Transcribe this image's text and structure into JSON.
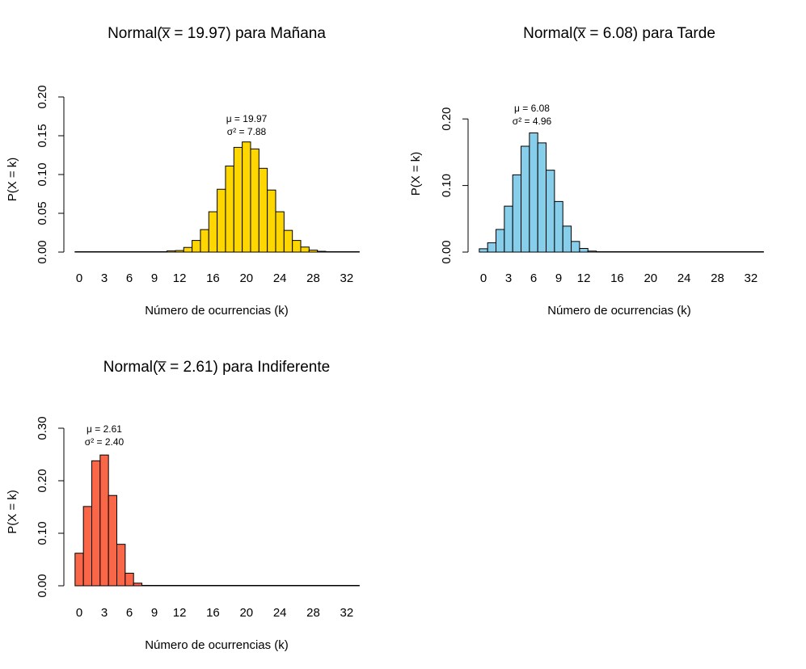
{
  "chart_data": [
    {
      "type": "bar",
      "title": "Normal(x̅ = 19.97) para Mañana",
      "xlabel": "Número de ocurrencias (k)",
      "ylabel": "P(X = k)",
      "color": "#FFD700",
      "x_ticks": [
        "0",
        "3",
        "6",
        "9",
        "12",
        "16",
        "20",
        "24",
        "28",
        "32"
      ],
      "y_ticks": [
        "0.00",
        "0.05",
        "0.10",
        "0.15",
        "0.20"
      ],
      "ylim": [
        0,
        0.2
      ],
      "annotation": [
        "μ = 19.97",
        "σ² = 7.88"
      ],
      "categories": [
        0,
        1,
        2,
        3,
        4,
        5,
        6,
        7,
        8,
        9,
        10,
        11,
        12,
        13,
        14,
        15,
        16,
        17,
        18,
        19,
        20,
        21,
        22,
        23,
        24,
        25,
        26,
        27,
        28,
        29,
        30,
        31,
        32,
        33
      ],
      "values": [
        0,
        0,
        0,
        0,
        0,
        0,
        0,
        0,
        0,
        0,
        0.0005,
        0.0015,
        0.002,
        0.006,
        0.015,
        0.029,
        0.052,
        0.081,
        0.111,
        0.135,
        0.142,
        0.133,
        0.108,
        0.08,
        0.052,
        0.028,
        0.015,
        0.0065,
        0.0025,
        0.001,
        0.0003,
        0,
        0,
        0
      ]
    },
    {
      "type": "bar",
      "title": "Normal(x̅ = 6.08) para Tarde",
      "xlabel": "Número de ocurrencias (k)",
      "ylabel": "P(X = k)",
      "color": "#87CEEB",
      "x_ticks": [
        "0",
        "3",
        "6",
        "9",
        "12",
        "16",
        "20",
        "24",
        "28",
        "32"
      ],
      "y_ticks": [
        "0.00",
        "0.10",
        "0.20"
      ],
      "ylim": [
        0,
        0.25
      ],
      "annotation": [
        "μ = 6.08",
        "σ² = 4.96"
      ],
      "categories": [
        0,
        1,
        2,
        3,
        4,
        5,
        6,
        7,
        8,
        9,
        10,
        11,
        12,
        13,
        14,
        15,
        16,
        17,
        18,
        19,
        20,
        21,
        22,
        23,
        24,
        25,
        26,
        27,
        28,
        29,
        30,
        31,
        32,
        33
      ],
      "values": [
        0.005,
        0.014,
        0.034,
        0.069,
        0.116,
        0.159,
        0.179,
        0.164,
        0.123,
        0.076,
        0.039,
        0.016,
        0.0055,
        0.0015,
        0.0004,
        0,
        0,
        0,
        0,
        0,
        0,
        0,
        0,
        0,
        0,
        0,
        0,
        0,
        0,
        0,
        0,
        0,
        0,
        0
      ]
    },
    {
      "type": "bar",
      "title": "Normal(x̅ = 2.61) para Indiferente",
      "xlabel": "Número de ocurrencias (k)",
      "ylabel": "P(X = k)",
      "color": "#FA6648",
      "x_ticks": [
        "0",
        "3",
        "6",
        "9",
        "12",
        "16",
        "20",
        "24",
        "28",
        "32"
      ],
      "y_ticks": [
        "0.00",
        "0.10",
        "0.20",
        "0.30"
      ],
      "ylim": [
        0,
        0.3
      ],
      "annotation": [
        "μ = 2.61",
        "σ² = 2.40"
      ],
      "categories": [
        0,
        1,
        2,
        3,
        4,
        5,
        6,
        7,
        8,
        9,
        10,
        11,
        12,
        13,
        14,
        15,
        16,
        17,
        18,
        19,
        20,
        21,
        22,
        23,
        24,
        25,
        26,
        27,
        28,
        29,
        30,
        31,
        32,
        33
      ],
      "values": [
        0.062,
        0.151,
        0.238,
        0.249,
        0.172,
        0.079,
        0.024,
        0.005,
        0.0008,
        0,
        0,
        0,
        0,
        0,
        0,
        0,
        0,
        0,
        0,
        0,
        0,
        0,
        0,
        0,
        0,
        0,
        0,
        0,
        0,
        0,
        0,
        0,
        0,
        0
      ]
    }
  ]
}
